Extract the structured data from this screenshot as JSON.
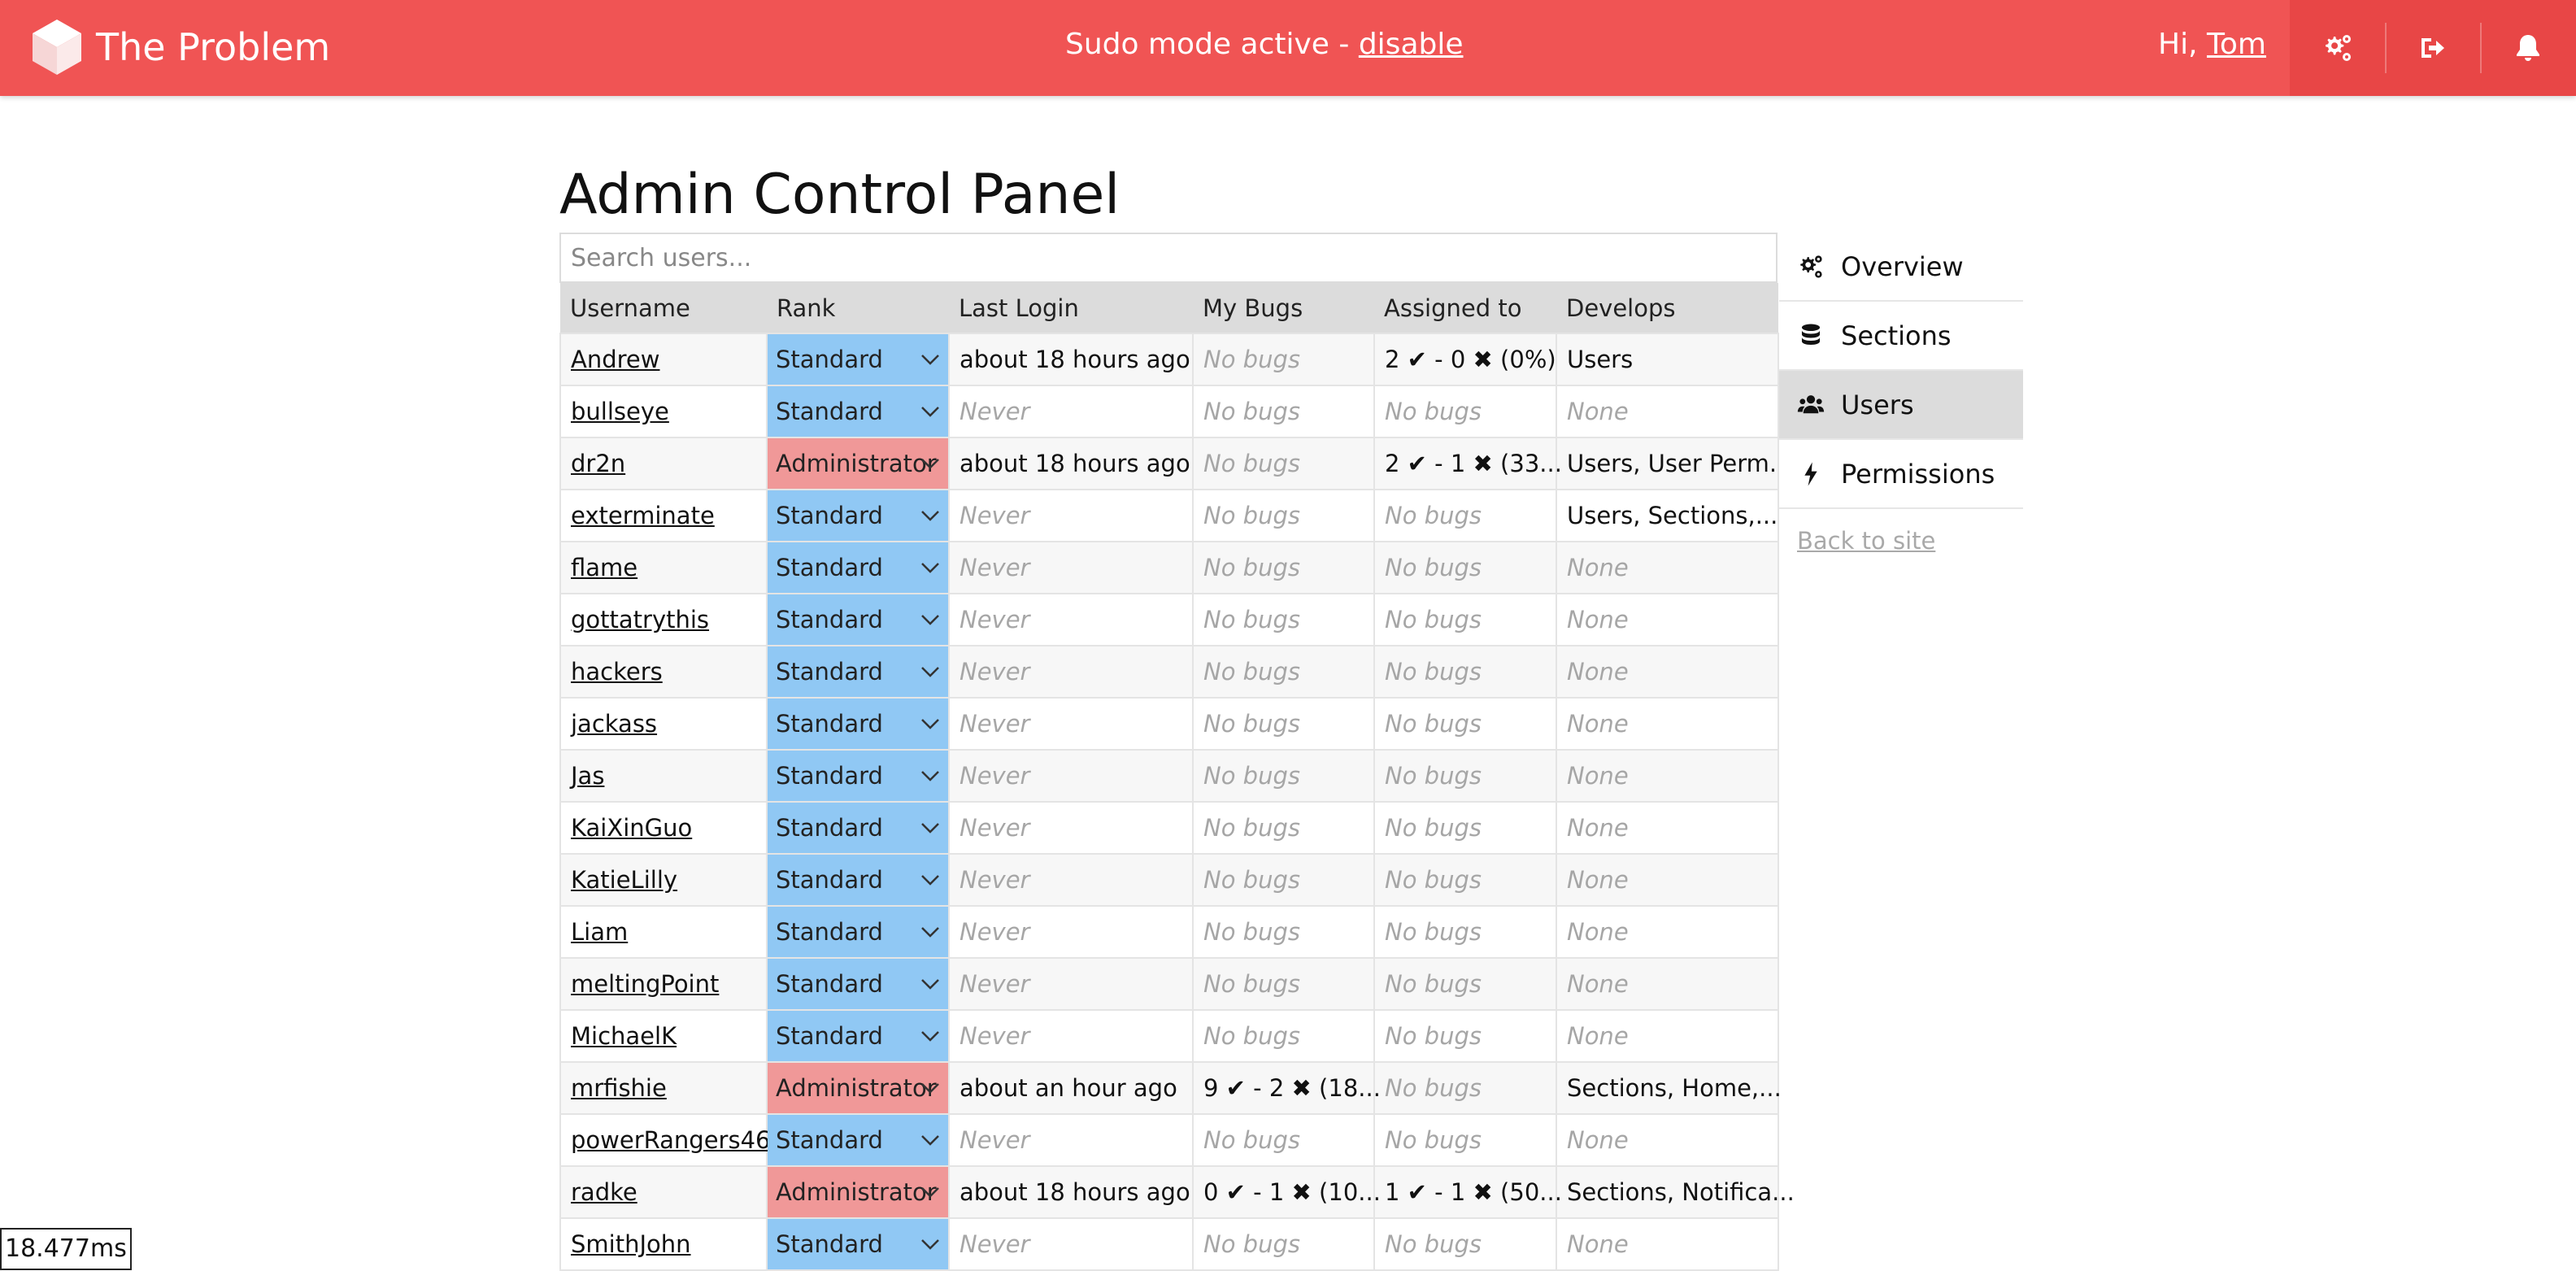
{
  "header": {
    "brand": "The Problem",
    "sudo_text": "Sudo mode active - ",
    "sudo_link": "disable",
    "greeting": "Hi, ",
    "user": "Tom",
    "accent": "#f05454",
    "buttons": [
      "gears-icon",
      "sign-out-icon",
      "bell-icon"
    ]
  },
  "page": {
    "title": "Admin Control Panel",
    "search_placeholder": "Search users..."
  },
  "table": {
    "columns": [
      "Username",
      "Rank",
      "Last Login",
      "My Bugs",
      "Assigned to",
      "Develops"
    ],
    "rows": [
      {
        "username": "Andrew",
        "rank": "Standard",
        "last_login": "about 18 hours ago",
        "my_bugs": "No bugs",
        "assigned": "2 ✔ - 0 ✖ (0%)",
        "develops": "Users"
      },
      {
        "username": "bullseye",
        "rank": "Standard",
        "last_login": "Never",
        "my_bugs": "No bugs",
        "assigned": "No bugs",
        "develops": "None"
      },
      {
        "username": "dr2n",
        "rank": "Administrator",
        "last_login": "about 18 hours ago",
        "my_bugs": "No bugs",
        "assigned": "2 ✔ - 1 ✖ (33...",
        "develops": "Users, User Perm..."
      },
      {
        "username": "exterminate",
        "rank": "Standard",
        "last_login": "Never",
        "my_bugs": "No bugs",
        "assigned": "No bugs",
        "develops": "Users, Sections,..."
      },
      {
        "username": "flame",
        "rank": "Standard",
        "last_login": "Never",
        "my_bugs": "No bugs",
        "assigned": "No bugs",
        "develops": "None"
      },
      {
        "username": "gottatrythis",
        "rank": "Standard",
        "last_login": "Never",
        "my_bugs": "No bugs",
        "assigned": "No bugs",
        "develops": "None"
      },
      {
        "username": "hackers",
        "rank": "Standard",
        "last_login": "Never",
        "my_bugs": "No bugs",
        "assigned": "No bugs",
        "develops": "None"
      },
      {
        "username": "jackass",
        "rank": "Standard",
        "last_login": "Never",
        "my_bugs": "No bugs",
        "assigned": "No bugs",
        "develops": "None"
      },
      {
        "username": "Jas",
        "rank": "Standard",
        "last_login": "Never",
        "my_bugs": "No bugs",
        "assigned": "No bugs",
        "develops": "None"
      },
      {
        "username": "KaiXinGuo",
        "rank": "Standard",
        "last_login": "Never",
        "my_bugs": "No bugs",
        "assigned": "No bugs",
        "develops": "None"
      },
      {
        "username": "KatieLilly",
        "rank": "Standard",
        "last_login": "Never",
        "my_bugs": "No bugs",
        "assigned": "No bugs",
        "develops": "None"
      },
      {
        "username": "Liam",
        "rank": "Standard",
        "last_login": "Never",
        "my_bugs": "No bugs",
        "assigned": "No bugs",
        "develops": "None"
      },
      {
        "username": "meltingPoint",
        "rank": "Standard",
        "last_login": "Never",
        "my_bugs": "No bugs",
        "assigned": "No bugs",
        "develops": "None"
      },
      {
        "username": "MichaelK",
        "rank": "Standard",
        "last_login": "Never",
        "my_bugs": "No bugs",
        "assigned": "No bugs",
        "develops": "None"
      },
      {
        "username": "mrfishie",
        "rank": "Administrator",
        "last_login": "about an hour ago",
        "my_bugs": "9 ✔ - 2 ✖ (18...",
        "assigned": "No bugs",
        "develops": "Sections, Home,..."
      },
      {
        "username": "powerRangers46",
        "rank": "Standard",
        "last_login": "Never",
        "my_bugs": "No bugs",
        "assigned": "No bugs",
        "develops": "None"
      },
      {
        "username": "radke",
        "rank": "Administrator",
        "last_login": "about 18 hours ago",
        "my_bugs": "0 ✔ - 1 ✖ (10...",
        "assigned": "1 ✔ - 1 ✖ (50...",
        "develops": "Sections, Notifica..."
      },
      {
        "username": "SmithJohn",
        "rank": "Standard",
        "last_login": "Never",
        "my_bugs": "No bugs",
        "assigned": "No bugs",
        "develops": "None"
      }
    ],
    "rank_colors": {
      "Standard": "#90c8f4",
      "Administrator": "#f09898"
    }
  },
  "sidenav": {
    "items": [
      {
        "label": "Overview",
        "icon": "gears-icon"
      },
      {
        "label": "Sections",
        "icon": "database-icon"
      },
      {
        "label": "Users",
        "icon": "users-icon",
        "active": true
      },
      {
        "label": "Permissions",
        "icon": "bolt-icon"
      }
    ],
    "back_link": "Back to site"
  },
  "timer": "18.477ms"
}
